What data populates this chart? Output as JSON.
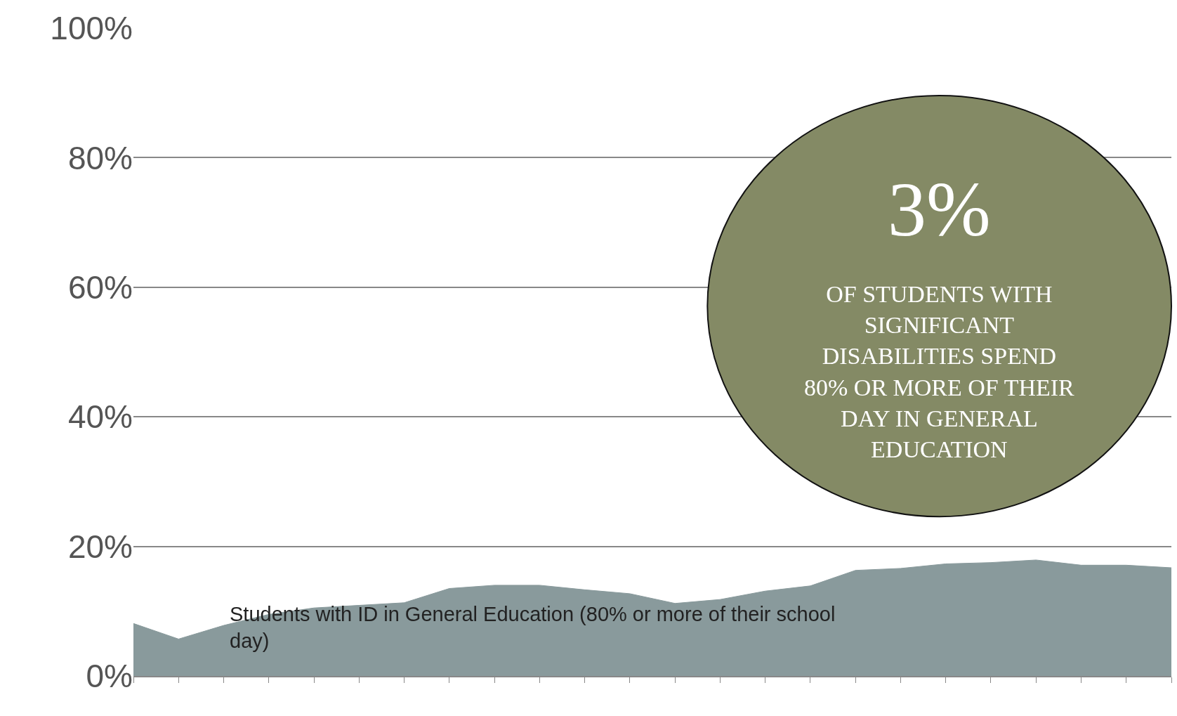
{
  "chart_data": {
    "type": "area",
    "categories": [
      null,
      null,
      null,
      null,
      null,
      null,
      null,
      null,
      null,
      null,
      null,
      null,
      null,
      null,
      null,
      null,
      null,
      null,
      null,
      null,
      null,
      null,
      null,
      null
    ],
    "series": [
      {
        "name": "Students with ID in General Education (80% or more of their school day)",
        "color": "#899a9c",
        "values": [
          8.1,
          5.7,
          7.8,
          9.5,
          10.5,
          10.9,
          11.3,
          13.5,
          14.0,
          14.0,
          13.3,
          12.7,
          11.2,
          11.8,
          13.1,
          13.9,
          16.3,
          16.6,
          17.3,
          17.5,
          17.9,
          17.1,
          17.1,
          16.7
        ]
      }
    ],
    "ylim": [
      0,
      100
    ],
    "yticks": [
      {
        "value": 0,
        "label": "0%"
      },
      {
        "value": 20,
        "label": "20%"
      },
      {
        "value": 40,
        "label": "40%"
      },
      {
        "value": 60,
        "label": "60%"
      },
      {
        "value": 80,
        "label": "80%"
      },
      {
        "value": 100,
        "label": "100%"
      }
    ],
    "grid": "y",
    "legend": false,
    "annotations": [
      "3%",
      "OF STUDENTS WITH SIGNIFICANT DISABILITIES SPEND 80% OR MORE OF THEIR DAY IN GENERAL EDUCATION"
    ]
  }
}
